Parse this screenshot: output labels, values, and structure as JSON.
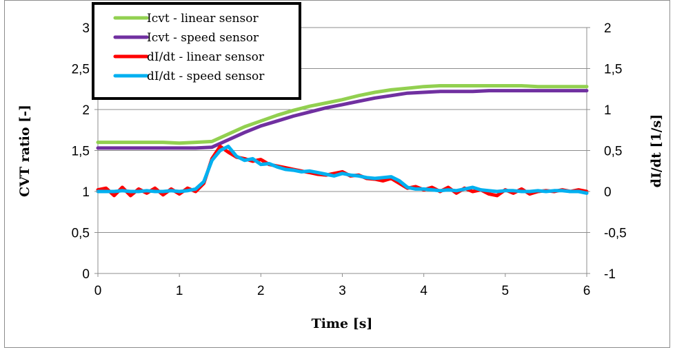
{
  "chart_data": {
    "type": "line",
    "xlabel": "Time [s]",
    "ylabel_left": "CVT ratio [-]",
    "ylabel_right": "dI/dt [1/s]",
    "xlim": [
      0,
      6
    ],
    "ylim_left": [
      0,
      3
    ],
    "ylim_right": [
      -1,
      2
    ],
    "x_ticks": [
      "0",
      "1",
      "2",
      "3",
      "4",
      "5",
      "6"
    ],
    "y_left_ticks": [
      "0",
      "0,5",
      "1",
      "1,5",
      "2",
      "2,5",
      "3"
    ],
    "y_right_ticks": [
      "-1",
      "-0,5",
      "0",
      "0,5",
      "1",
      "1,5",
      "2"
    ],
    "grid": "horizontal",
    "legend_position": "top-left",
    "series": [
      {
        "name": "Icvt - linear sensor",
        "axis": "left",
        "color": "#92d050",
        "x": [
          0,
          0.2,
          0.4,
          0.6,
          0.8,
          1.0,
          1.2,
          1.4,
          1.6,
          1.8,
          2.0,
          2.2,
          2.4,
          2.6,
          2.8,
          3.0,
          3.2,
          3.4,
          3.6,
          3.8,
          4.0,
          4.2,
          4.4,
          4.6,
          4.8,
          5.0,
          5.2,
          5.4,
          5.6,
          5.8,
          6.0
        ],
        "values": [
          1.6,
          1.6,
          1.6,
          1.6,
          1.6,
          1.59,
          1.6,
          1.61,
          1.7,
          1.79,
          1.86,
          1.93,
          1.99,
          2.04,
          2.08,
          2.12,
          2.17,
          2.21,
          2.24,
          2.26,
          2.28,
          2.29,
          2.29,
          2.29,
          2.29,
          2.29,
          2.29,
          2.28,
          2.28,
          2.28,
          2.28
        ]
      },
      {
        "name": "Icvt - speed sensor",
        "axis": "left",
        "color": "#7030a0",
        "x": [
          0,
          0.2,
          0.4,
          0.6,
          0.8,
          1.0,
          1.2,
          1.4,
          1.6,
          1.8,
          2.0,
          2.2,
          2.4,
          2.6,
          2.8,
          3.0,
          3.2,
          3.4,
          3.6,
          3.8,
          4.0,
          4.2,
          4.4,
          4.6,
          4.8,
          5.0,
          5.2,
          5.4,
          5.6,
          5.8,
          6.0
        ],
        "values": [
          1.53,
          1.53,
          1.53,
          1.53,
          1.53,
          1.53,
          1.53,
          1.54,
          1.63,
          1.72,
          1.8,
          1.86,
          1.92,
          1.97,
          2.02,
          2.06,
          2.1,
          2.14,
          2.17,
          2.2,
          2.21,
          2.22,
          2.22,
          2.22,
          2.23,
          2.23,
          2.23,
          2.23,
          2.23,
          2.23,
          2.23
        ]
      },
      {
        "name": "dI/dt - linear sensor",
        "axis": "right",
        "color": "#ff0000",
        "x": [
          0,
          0.1,
          0.2,
          0.3,
          0.4,
          0.5,
          0.6,
          0.7,
          0.8,
          0.9,
          1.0,
          1.1,
          1.2,
          1.3,
          1.4,
          1.5,
          1.6,
          1.7,
          1.8,
          1.9,
          2.0,
          2.1,
          2.2,
          2.3,
          2.4,
          2.5,
          2.6,
          2.7,
          2.8,
          2.9,
          3.0,
          3.1,
          3.2,
          3.3,
          3.4,
          3.5,
          3.6,
          3.7,
          3.8,
          3.9,
          4.0,
          4.1,
          4.2,
          4.3,
          4.4,
          4.5,
          4.6,
          4.7,
          4.8,
          4.9,
          5.0,
          5.1,
          5.2,
          5.3,
          5.4,
          5.5,
          5.6,
          5.7,
          5.8,
          5.9,
          6.0
        ],
        "values": [
          0.02,
          0.04,
          -0.05,
          0.05,
          -0.05,
          0.03,
          -0.02,
          0.04,
          -0.04,
          0.03,
          -0.03,
          0.04,
          0.0,
          0.1,
          0.4,
          0.55,
          0.48,
          0.42,
          0.4,
          0.37,
          0.39,
          0.33,
          0.31,
          0.29,
          0.27,
          0.25,
          0.23,
          0.21,
          0.2,
          0.22,
          0.24,
          0.19,
          0.2,
          0.16,
          0.15,
          0.13,
          0.16,
          0.1,
          0.04,
          0.06,
          0.02,
          0.05,
          0.0,
          0.05,
          -0.02,
          0.04,
          0.0,
          0.02,
          -0.03,
          -0.05,
          0.02,
          -0.02,
          0.03,
          -0.03,
          0.0,
          0.01,
          0.0,
          0.02,
          0.0,
          0.02,
          0.0
        ]
      },
      {
        "name": "dI/dt - speed sensor",
        "axis": "right",
        "color": "#00b0f0",
        "x": [
          0,
          0.1,
          0.2,
          0.3,
          0.4,
          0.5,
          0.6,
          0.7,
          0.8,
          0.9,
          1.0,
          1.1,
          1.2,
          1.3,
          1.4,
          1.5,
          1.6,
          1.7,
          1.8,
          1.9,
          2.0,
          2.1,
          2.2,
          2.3,
          2.4,
          2.5,
          2.6,
          2.7,
          2.8,
          2.9,
          3.0,
          3.1,
          3.2,
          3.3,
          3.4,
          3.5,
          3.6,
          3.7,
          3.8,
          3.9,
          4.0,
          4.1,
          4.2,
          4.3,
          4.4,
          4.5,
          4.6,
          4.7,
          4.8,
          4.9,
          5.0,
          5.1,
          5.2,
          5.3,
          5.4,
          5.5,
          5.6,
          5.7,
          5.8,
          5.9,
          6.0
        ],
        "values": [
          0.0,
          0.0,
          0.0,
          0.01,
          0.0,
          0.0,
          0.01,
          0.0,
          0.0,
          0.01,
          0.0,
          0.01,
          0.03,
          0.12,
          0.38,
          0.5,
          0.55,
          0.43,
          0.38,
          0.4,
          0.33,
          0.34,
          0.3,
          0.27,
          0.26,
          0.24,
          0.25,
          0.23,
          0.21,
          0.19,
          0.22,
          0.2,
          0.19,
          0.17,
          0.16,
          0.17,
          0.18,
          0.13,
          0.05,
          0.03,
          0.03,
          0.02,
          0.01,
          0.02,
          0.01,
          0.03,
          0.05,
          0.02,
          0.01,
          0.0,
          0.01,
          0.01,
          0.0,
          0.0,
          0.01,
          0.0,
          0.01,
          0.01,
          0.0,
          0.0,
          -0.02
        ]
      }
    ]
  }
}
